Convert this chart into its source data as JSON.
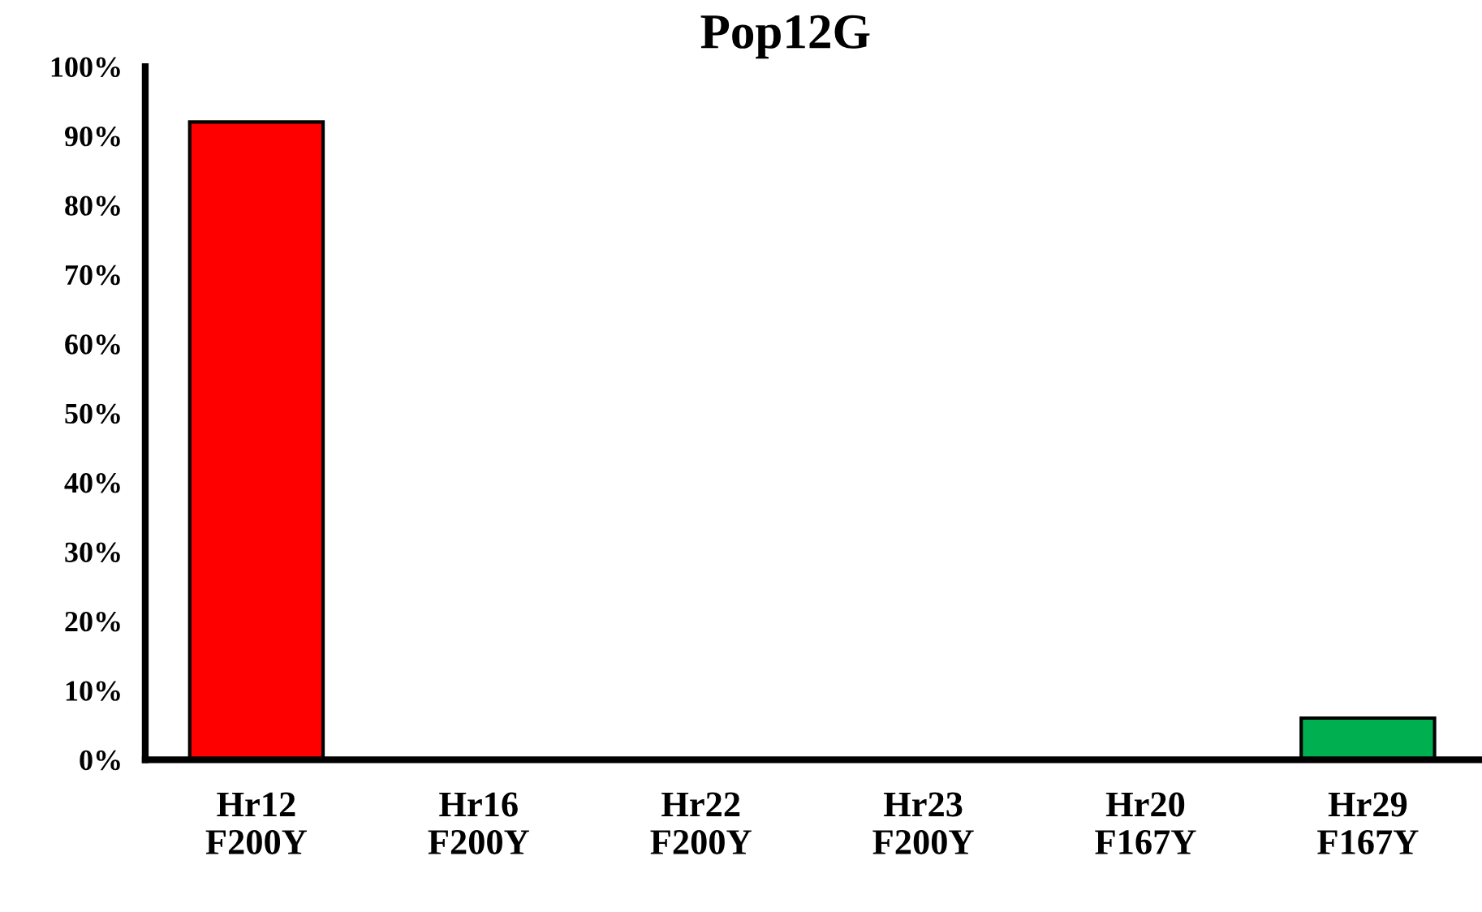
{
  "chart_data": {
    "type": "bar",
    "title": "Pop12G",
    "categories": [
      "Hr12\nF200Y",
      "Hr16\nF200Y",
      "Hr22\nF200Y",
      "Hr23\nF200Y",
      "Hr20\nF167Y",
      "Hr29\nF167Y"
    ],
    "values": [
      92,
      0,
      0,
      0,
      0,
      6
    ],
    "colors": [
      "#ff0000",
      null,
      null,
      null,
      null,
      "#00b050"
    ],
    "ylim": [
      0,
      100
    ],
    "yticks": [
      {
        "value": 0,
        "label": "0%"
      },
      {
        "value": 10,
        "label": "10%"
      },
      {
        "value": 20,
        "label": "20%"
      },
      {
        "value": 30,
        "label": "30%"
      },
      {
        "value": 40,
        "label": "40%"
      },
      {
        "value": 50,
        "label": "50%"
      },
      {
        "value": 60,
        "label": "60%"
      },
      {
        "value": 70,
        "label": "70%"
      },
      {
        "value": 80,
        "label": "80%"
      },
      {
        "value": 90,
        "label": "90%"
      },
      {
        "value": 100,
        "label": "100%"
      }
    ],
    "grid": false,
    "legend": false
  }
}
